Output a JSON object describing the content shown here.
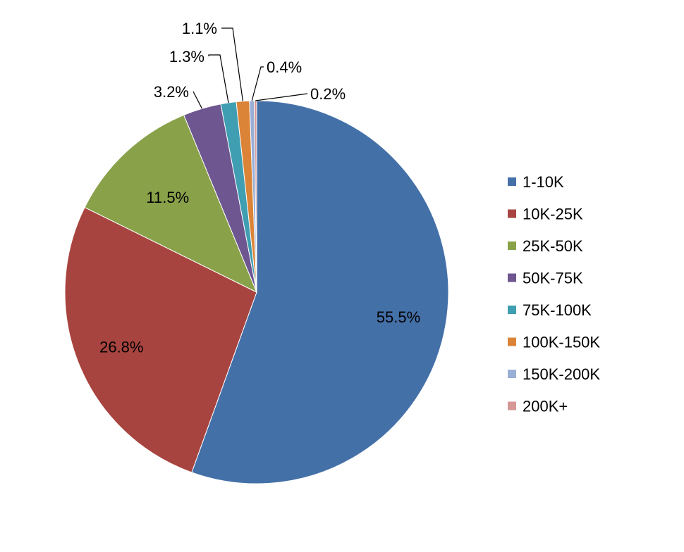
{
  "chart_data": {
    "type": "pie",
    "title": "",
    "start_angle_deg": 0,
    "direction": "clockwise",
    "legend_position": "right",
    "slices": [
      {
        "name": "1-10K",
        "value": 55.5,
        "label": "55.5%",
        "color": "#4470A8"
      },
      {
        "name": "10K-25K",
        "value": 26.8,
        "label": "26.8%",
        "color": "#A8443F"
      },
      {
        "name": "25K-50K",
        "value": 11.5,
        "label": "11.5%",
        "color": "#89A24A"
      },
      {
        "name": "50K-75K",
        "value": 3.2,
        "label": "3.2%",
        "color": "#6E5690"
      },
      {
        "name": "75K-100K",
        "value": 1.3,
        "label": "1.3%",
        "color": "#3F9EB2"
      },
      {
        "name": "100K-150K",
        "value": 1.1,
        "label": "1.1%",
        "color": "#DB8438"
      },
      {
        "name": "150K-200K",
        "value": 0.4,
        "label": "0.4%",
        "color": "#9AAFD6"
      },
      {
        "name": "200K+",
        "value": 0.2,
        "label": "0.2%",
        "color": "#D69796"
      }
    ]
  }
}
